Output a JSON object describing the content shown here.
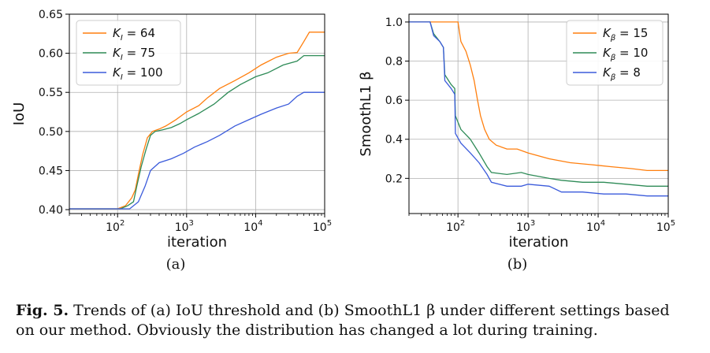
{
  "chart_data": [
    {
      "type": "line",
      "panel_label": "(a)",
      "xlabel": "iteration",
      "ylabel": "IoU",
      "xscale": "log",
      "xlim": [
        20,
        100000
      ],
      "ylim": [
        0.395,
        0.65
      ],
      "xticks": [
        {
          "value": 100,
          "base": "10",
          "exp": "2"
        },
        {
          "value": 1000,
          "base": "10",
          "exp": "3"
        },
        {
          "value": 10000,
          "base": "10",
          "exp": "4"
        },
        {
          "value": 100000,
          "base": "10",
          "exp": "5"
        }
      ],
      "yticks": [
        {
          "value": 0.4,
          "label": "0.40"
        },
        {
          "value": 0.45,
          "label": "0.45"
        },
        {
          "value": 0.5,
          "label": "0.50"
        },
        {
          "value": 0.55,
          "label": "0.55"
        },
        {
          "value": 0.6,
          "label": "0.60"
        },
        {
          "value": 0.65,
          "label": "0.65"
        }
      ],
      "legend_position": "top-left",
      "series": [
        {
          "name": "K_I = 64",
          "legend_sym": "K",
          "legend_sub": "I",
          "legend_value": "64",
          "color": "#ff7f0e",
          "points": [
            [
              20,
              0.401
            ],
            [
              100,
              0.401
            ],
            [
              130,
              0.405
            ],
            [
              160,
              0.415
            ],
            [
              180,
              0.425
            ],
            [
              200,
              0.445
            ],
            [
              230,
              0.47
            ],
            [
              270,
              0.492
            ],
            [
              320,
              0.5
            ],
            [
              400,
              0.503
            ],
            [
              500,
              0.507
            ],
            [
              700,
              0.515
            ],
            [
              1000,
              0.525
            ],
            [
              1500,
              0.533
            ],
            [
              2000,
              0.543
            ],
            [
              3000,
              0.555
            ],
            [
              5000,
              0.565
            ],
            [
              8000,
              0.575
            ],
            [
              12000,
              0.585
            ],
            [
              20000,
              0.595
            ],
            [
              30000,
              0.6
            ],
            [
              40000,
              0.601
            ],
            [
              50000,
              0.615
            ],
            [
              60000,
              0.627
            ],
            [
              100000,
              0.627
            ]
          ]
        },
        {
          "name": "K_I = 75",
          "legend_sym": "K",
          "legend_sub": "I",
          "legend_value": "75",
          "color": "#2e8b57",
          "points": [
            [
              20,
              0.401
            ],
            [
              110,
              0.401
            ],
            [
              140,
              0.405
            ],
            [
              170,
              0.41
            ],
            [
              190,
              0.43
            ],
            [
              220,
              0.455
            ],
            [
              260,
              0.478
            ],
            [
              300,
              0.495
            ],
            [
              350,
              0.5
            ],
            [
              450,
              0.502
            ],
            [
              600,
              0.505
            ],
            [
              800,
              0.51
            ],
            [
              1000,
              0.515
            ],
            [
              1500,
              0.523
            ],
            [
              2500,
              0.535
            ],
            [
              4000,
              0.55
            ],
            [
              6000,
              0.56
            ],
            [
              10000,
              0.57
            ],
            [
              15000,
              0.575
            ],
            [
              25000,
              0.585
            ],
            [
              40000,
              0.59
            ],
            [
              50000,
              0.597
            ],
            [
              100000,
              0.597
            ]
          ]
        },
        {
          "name": "K_I = 100",
          "legend_sym": "K",
          "legend_sub": "I",
          "legend_value": "100",
          "color": "#3b5bdb",
          "points": [
            [
              20,
              0.401
            ],
            [
              150,
              0.401
            ],
            [
              200,
              0.41
            ],
            [
              250,
              0.43
            ],
            [
              300,
              0.45
            ],
            [
              400,
              0.46
            ],
            [
              600,
              0.465
            ],
            [
              900,
              0.472
            ],
            [
              1300,
              0.48
            ],
            [
              2000,
              0.487
            ],
            [
              3000,
              0.495
            ],
            [
              5000,
              0.507
            ],
            [
              8000,
              0.515
            ],
            [
              12000,
              0.522
            ],
            [
              20000,
              0.53
            ],
            [
              30000,
              0.535
            ],
            [
              40000,
              0.545
            ],
            [
              50000,
              0.55
            ],
            [
              100000,
              0.55
            ]
          ]
        }
      ]
    },
    {
      "type": "line",
      "panel_label": "(b)",
      "xlabel": "iteration",
      "ylabel": "SmoothL1 β",
      "xscale": "log",
      "xlim": [
        20,
        100000
      ],
      "ylim": [
        0.02,
        1.04
      ],
      "xticks": [
        {
          "value": 100,
          "base": "10",
          "exp": "2"
        },
        {
          "value": 1000,
          "base": "10",
          "exp": "3"
        },
        {
          "value": 10000,
          "base": "10",
          "exp": "4"
        },
        {
          "value": 100000,
          "base": "10",
          "exp": "5"
        }
      ],
      "yticks": [
        {
          "value": 0.2,
          "label": "0.2"
        },
        {
          "value": 0.4,
          "label": "0.4"
        },
        {
          "value": 0.6,
          "label": "0.6"
        },
        {
          "value": 0.8,
          "label": "0.8"
        },
        {
          "value": 1.0,
          "label": "1.0"
        }
      ],
      "legend_position": "top-right",
      "series": [
        {
          "name": "K_β = 15",
          "legend_sym": "K",
          "legend_sub": "β",
          "legend_value": "15",
          "color": "#ff7f0e",
          "points": [
            [
              20,
              1.0
            ],
            [
              100,
              1.0
            ],
            [
              110,
              0.9
            ],
            [
              130,
              0.85
            ],
            [
              150,
              0.78
            ],
            [
              170,
              0.7
            ],
            [
              190,
              0.6
            ],
            [
              210,
              0.52
            ],
            [
              240,
              0.45
            ],
            [
              280,
              0.4
            ],
            [
              350,
              0.37
            ],
            [
              500,
              0.35
            ],
            [
              700,
              0.35
            ],
            [
              1000,
              0.33
            ],
            [
              2000,
              0.3
            ],
            [
              4000,
              0.28
            ],
            [
              8000,
              0.27
            ],
            [
              15000,
              0.26
            ],
            [
              30000,
              0.25
            ],
            [
              50000,
              0.24
            ],
            [
              100000,
              0.24
            ]
          ]
        },
        {
          "name": "K_β = 10",
          "legend_sym": "K",
          "legend_sub": "β",
          "legend_value": "10",
          "color": "#2e8b57",
          "points": [
            [
              20,
              1.0
            ],
            [
              40,
              1.0
            ],
            [
              45,
              0.94
            ],
            [
              55,
              0.9
            ],
            [
              62,
              0.87
            ],
            [
              65,
              0.73
            ],
            [
              80,
              0.68
            ],
            [
              90,
              0.66
            ],
            [
              92,
              0.52
            ],
            [
              110,
              0.45
            ],
            [
              150,
              0.4
            ],
            [
              200,
              0.33
            ],
            [
              260,
              0.26
            ],
            [
              300,
              0.23
            ],
            [
              500,
              0.22
            ],
            [
              800,
              0.23
            ],
            [
              1000,
              0.22
            ],
            [
              2000,
              0.2
            ],
            [
              3000,
              0.19
            ],
            [
              6000,
              0.18
            ],
            [
              12000,
              0.18
            ],
            [
              25000,
              0.17
            ],
            [
              50000,
              0.16
            ],
            [
              100000,
              0.16
            ]
          ]
        },
        {
          "name": "K_β = 8",
          "legend_sym": "K",
          "legend_sub": "β",
          "legend_value": "8",
          "color": "#3b5bdb",
          "points": [
            [
              20,
              1.0
            ],
            [
              40,
              1.0
            ],
            [
              45,
              0.93
            ],
            [
              55,
              0.9
            ],
            [
              62,
              0.87
            ],
            [
              65,
              0.7
            ],
            [
              80,
              0.66
            ],
            [
              90,
              0.63
            ],
            [
              92,
              0.43
            ],
            [
              110,
              0.38
            ],
            [
              150,
              0.33
            ],
            [
              200,
              0.28
            ],
            [
              260,
              0.22
            ],
            [
              300,
              0.18
            ],
            [
              500,
              0.16
            ],
            [
              800,
              0.16
            ],
            [
              1000,
              0.17
            ],
            [
              2000,
              0.16
            ],
            [
              3000,
              0.13
            ],
            [
              6000,
              0.13
            ],
            [
              12000,
              0.12
            ],
            [
              25000,
              0.12
            ],
            [
              50000,
              0.11
            ],
            [
              100000,
              0.11
            ]
          ]
        }
      ]
    }
  ],
  "caption": {
    "label": "Fig. 5.",
    "line1_rest": " Trends of (a) IoU threshold and (b) SmoothL1 β under different settings based",
    "line2": "on our method. Obviously the distribution has changed a lot during training."
  }
}
